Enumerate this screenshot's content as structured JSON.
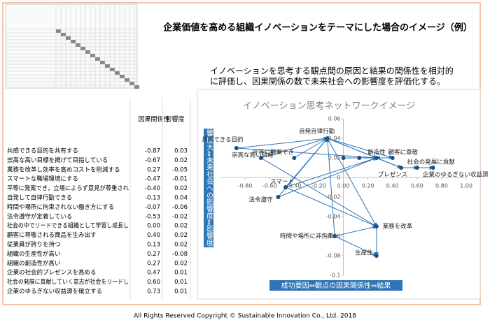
{
  "title": "企業価値を高める組織イノベーションをテーマにした場合のイメージ（例）",
  "description": [
    "イノベーションを思考する観点間の原因と結果の関係性を相対的",
    "に評価し、因果関係の数で未来社会への影響度を評価化する。"
  ],
  "table": {
    "headers": [
      "因果関係性",
      "影響度"
    ],
    "rows": [
      [
        "共感できる目的を共有する",
        "-0.87",
        "0.03"
      ],
      [
        "崇高な高い目標を掲げて目指している",
        "-0.67",
        "0.02"
      ],
      [
        "業務を改革し効率を高めコストを削減する",
        "0.27",
        "-0.05"
      ],
      [
        "スマートな職場環境にする",
        "-0.47",
        "-0.01"
      ],
      [
        "平等に発案でき，立場によらず意見が尊重され",
        "-0.40",
        "0.02"
      ],
      [
        "自発して自律行動できる",
        "-0.13",
        "0.04"
      ],
      [
        "時間や場所に拘束されない働き方にする",
        "-0.07",
        "-0.06"
      ],
      [
        "法令遵守が定着している",
        "-0.53",
        "-0.02"
      ],
      [
        "社会の中でリードできる組織として学習し成長し",
        "0.00",
        "0.02"
      ],
      [
        "顧客に尊敬される商品を生み出す",
        "0.40",
        "0.02"
      ],
      [
        "従業員が誇りを持つ",
        "0.13",
        "0.02"
      ],
      [
        "組織の生産性が高い",
        "0.27",
        "-0.08"
      ],
      [
        "組織の創造性が高い",
        "0.27",
        "0.02"
      ],
      [
        "企業の社会的プレゼンスを高める",
        "0.47",
        "0.01"
      ],
      [
        "社会の発展に貢献していく意志が社会をリードし",
        "0.60",
        "0.01"
      ],
      [
        "企業のゆるぎない収益源を確立する",
        "0.73",
        "0.01"
      ]
    ]
  },
  "chart_data": {
    "type": "scatter",
    "title": "イノベーション思考ネットワークイメージ",
    "y_label": "影響度大⇔未来社会への影響度⇔影響度小",
    "x_label": "成功要因⇔観点の因果関係性⇔結果",
    "point_labels": [
      "共感できる目的",
      "崇高な高い目標",
      "業務を改革",
      "スマート",
      "平等に発案でき",
      "自発自律行動",
      "時間や場所に非拘束",
      "法令遵守",
      null,
      "顧客に尊敬",
      null,
      "生産性",
      "創造性",
      "プレゼンス",
      "社会の発展に貢献",
      "企業のゆるぎない収益源"
    ],
    "x": [
      -0.87,
      -0.67,
      0.27,
      -0.47,
      -0.4,
      -0.13,
      -0.07,
      -0.53,
      0.0,
      0.4,
      0.13,
      0.27,
      0.27,
      0.47,
      0.6,
      0.73
    ],
    "values": [
      0.03,
      0.02,
      -0.05,
      -0.01,
      0.02,
      0.04,
      -0.06,
      -0.02,
      0.02,
      0.02,
      0.02,
      -0.08,
      0.02,
      0.01,
      0.01,
      0.01
    ],
    "color": "#1f4e79",
    "edge_color": "#2e75b6",
    "xlim": [
      -1,
      1
    ],
    "xticks": [
      {
        "value": -0.8,
        "label": "-0.80"
      },
      {
        "value": -0.6,
        "label": "-0.60"
      },
      {
        "value": -0.4,
        "label": "-0.40"
      },
      {
        "value": -0.2,
        "label": "-0.20"
      },
      {
        "value": 0,
        "label": "0.00"
      },
      {
        "value": 0.2,
        "label": "0.20"
      },
      {
        "value": 0.4,
        "label": "0.40"
      },
      {
        "value": 0.6,
        "label": "0.60"
      },
      {
        "value": 0.8,
        "label": "0.80"
      },
      {
        "value": 1,
        "label": "1.00"
      }
    ],
    "ylim": [
      -0.1,
      0.06
    ],
    "yticks": [
      0.06,
      0.04,
      0.02,
      0,
      -0.02,
      -0.04,
      -0.06,
      -0.08,
      -0.1
    ]
  },
  "footer": "All Rights Reserved Copyright © Sustainable Innovation Co., Ltd. 2018"
}
